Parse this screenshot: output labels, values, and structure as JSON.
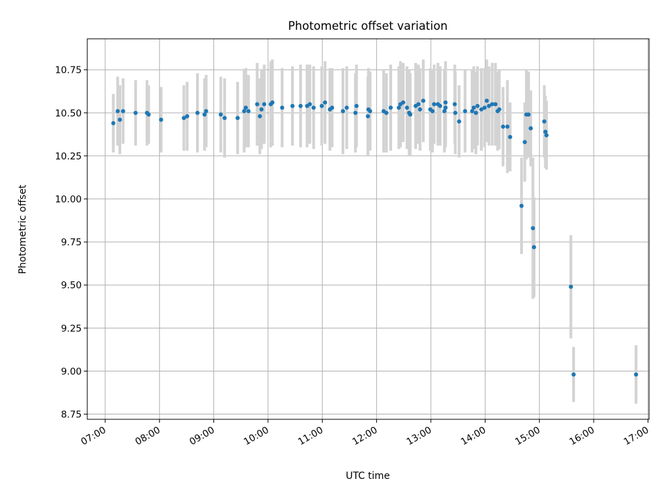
{
  "chart_data": {
    "type": "scatter",
    "title": "Photometric offset variation",
    "xlabel": "UTC time",
    "ylabel": "Photometric offset",
    "x_unit": "UTC hour of day",
    "xlim": [
      6.67,
      17.02
    ],
    "ylim": [
      8.72,
      10.93
    ],
    "x_ticks": [
      7,
      8,
      9,
      10,
      11,
      12,
      13,
      14,
      15,
      16,
      17
    ],
    "x_tick_labels": [
      "07:00",
      "08:00",
      "09:00",
      "10:00",
      "11:00",
      "12:00",
      "13:00",
      "14:00",
      "15:00",
      "16:00",
      "17:00"
    ],
    "y_ticks": [
      8.75,
      9.0,
      9.25,
      9.5,
      9.75,
      10.0,
      10.25,
      10.5,
      10.75
    ],
    "y_tick_labels": [
      "8.75",
      "9.00",
      "9.25",
      "9.50",
      "9.75",
      "10.00",
      "10.25",
      "10.50",
      "10.75"
    ],
    "grid": true,
    "marker_color": "#1f77b4",
    "errorbar_color": "#d3d3d3",
    "points": [
      [
        7.15,
        10.44,
        0.17
      ],
      [
        7.23,
        10.51,
        0.2
      ],
      [
        7.27,
        10.46,
        0.2
      ],
      [
        7.33,
        10.51,
        0.19
      ],
      [
        7.56,
        10.5,
        0.19
      ],
      [
        7.77,
        10.5,
        0.19
      ],
      [
        7.8,
        10.49,
        0.17
      ],
      [
        8.03,
        10.46,
        0.19
      ],
      [
        8.45,
        10.47,
        0.19
      ],
      [
        8.51,
        10.48,
        0.2
      ],
      [
        8.7,
        10.5,
        0.23
      ],
      [
        8.83,
        10.49,
        0.21
      ],
      [
        8.86,
        10.51,
        0.21
      ],
      [
        9.13,
        10.49,
        0.22
      ],
      [
        9.2,
        10.47,
        0.23
      ],
      [
        9.44,
        10.47,
        0.21
      ],
      [
        9.56,
        10.51,
        0.24
      ],
      [
        9.59,
        10.53,
        0.23
      ],
      [
        9.64,
        10.51,
        0.21
      ],
      [
        9.8,
        10.55,
        0.24
      ],
      [
        9.85,
        10.48,
        0.22
      ],
      [
        9.88,
        10.52,
        0.23
      ],
      [
        9.93,
        10.55,
        0.23
      ],
      [
        10.05,
        10.55,
        0.25
      ],
      [
        10.08,
        10.56,
        0.25
      ],
      [
        10.26,
        10.53,
        0.23
      ],
      [
        10.45,
        10.54,
        0.23
      ],
      [
        10.6,
        10.54,
        0.24
      ],
      [
        10.72,
        10.54,
        0.24
      ],
      [
        10.77,
        10.55,
        0.23
      ],
      [
        10.84,
        10.53,
        0.24
      ],
      [
        10.99,
        10.54,
        0.23
      ],
      [
        11.05,
        10.56,
        0.24
      ],
      [
        11.14,
        10.52,
        0.24
      ],
      [
        11.18,
        10.53,
        0.23
      ],
      [
        11.38,
        10.51,
        0.25
      ],
      [
        11.45,
        10.53,
        0.24
      ],
      [
        11.61,
        10.5,
        0.23
      ],
      [
        11.63,
        10.54,
        0.24
      ],
      [
        11.84,
        10.48,
        0.23
      ],
      [
        11.85,
        10.52,
        0.24
      ],
      [
        11.88,
        10.51,
        0.23
      ],
      [
        12.13,
        10.51,
        0.24
      ],
      [
        12.18,
        10.5,
        0.23
      ],
      [
        12.26,
        10.53,
        0.25
      ],
      [
        12.41,
        10.53,
        0.24
      ],
      [
        12.44,
        10.55,
        0.25
      ],
      [
        12.49,
        10.56,
        0.23
      ],
      [
        12.56,
        10.53,
        0.24
      ],
      [
        12.6,
        10.5,
        0.25
      ],
      [
        12.62,
        10.49,
        0.24
      ],
      [
        12.72,
        10.54,
        0.25
      ],
      [
        12.77,
        10.55,
        0.23
      ],
      [
        12.8,
        10.52,
        0.24
      ],
      [
        12.86,
        10.57,
        0.24
      ],
      [
        12.99,
        10.52,
        0.24
      ],
      [
        13.03,
        10.51,
        0.24
      ],
      [
        13.06,
        10.55,
        0.23
      ],
      [
        13.13,
        10.55,
        0.24
      ],
      [
        13.17,
        10.54,
        0.23
      ],
      [
        13.25,
        10.51,
        0.24
      ],
      [
        13.27,
        10.53,
        0.23
      ],
      [
        13.27,
        10.56,
        0.24
      ],
      [
        13.44,
        10.55,
        0.23
      ],
      [
        13.45,
        10.5,
        0.24
      ],
      [
        13.52,
        10.45,
        0.21
      ],
      [
        13.63,
        10.51,
        0.24
      ],
      [
        13.76,
        10.51,
        0.24
      ],
      [
        13.79,
        10.53,
        0.24
      ],
      [
        13.83,
        10.5,
        0.24
      ],
      [
        13.86,
        10.54,
        0.23
      ],
      [
        13.93,
        10.52,
        0.24
      ],
      [
        13.99,
        10.53,
        0.23
      ],
      [
        14.03,
        10.57,
        0.24
      ],
      [
        14.07,
        10.54,
        0.23
      ],
      [
        14.13,
        10.55,
        0.24
      ],
      [
        14.19,
        10.55,
        0.24
      ],
      [
        14.23,
        10.51,
        0.23
      ],
      [
        14.26,
        10.52,
        0.23
      ],
      [
        14.33,
        10.42,
        0.23
      ],
      [
        14.41,
        10.42,
        0.27
      ],
      [
        14.46,
        10.36,
        0.2
      ],
      [
        14.67,
        9.96,
        0.28
      ],
      [
        14.73,
        10.33,
        0.23
      ],
      [
        14.76,
        10.49,
        0.26
      ],
      [
        14.8,
        10.49,
        0.25
      ],
      [
        14.84,
        10.41,
        0.22
      ],
      [
        14.88,
        9.83,
        0.41
      ],
      [
        14.9,
        9.72,
        0.29
      ],
      [
        15.09,
        10.45,
        0.21
      ],
      [
        15.11,
        10.39,
        0.21
      ],
      [
        15.13,
        10.37,
        0.2
      ],
      [
        15.58,
        9.49,
        0.3
      ],
      [
        15.63,
        8.98,
        0.16
      ],
      [
        16.78,
        8.98,
        0.17
      ]
    ]
  }
}
